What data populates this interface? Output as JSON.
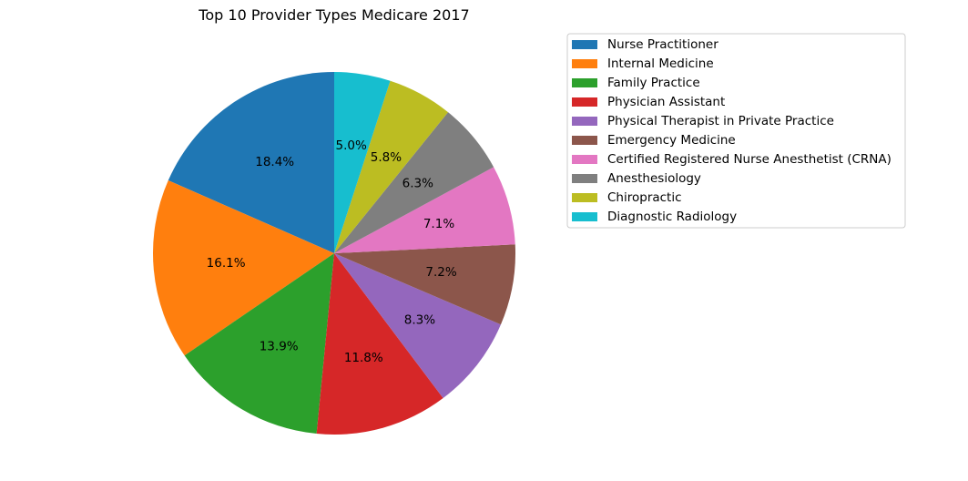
{
  "chart_data": {
    "type": "pie",
    "title": "Top 10 Provider Types Medicare 2017",
    "legend_placement": "upper-right",
    "start_angle_deg": 90,
    "direction": "counterclockwise",
    "slices": [
      {
        "label": "Nurse Practitioner",
        "value": 18.4,
        "pct_label": "18.4%",
        "color": "#1f77b4"
      },
      {
        "label": "Internal Medicine",
        "value": 16.1,
        "pct_label": "16.1%",
        "color": "#ff7f0e"
      },
      {
        "label": "Family Practice",
        "value": 13.9,
        "pct_label": "13.9%",
        "color": "#2ca02c"
      },
      {
        "label": "Physician Assistant",
        "value": 11.8,
        "pct_label": "11.8%",
        "color": "#d62728"
      },
      {
        "label": "Physical Therapist in Private Practice",
        "value": 8.3,
        "pct_label": "8.3%",
        "color": "#9467bd"
      },
      {
        "label": "Emergency Medicine",
        "value": 7.2,
        "pct_label": "7.2%",
        "color": "#8c564b"
      },
      {
        "label": "Certified Registered Nurse Anesthetist (CRNA)",
        "value": 7.1,
        "pct_label": "7.1%",
        "color": "#e377c2"
      },
      {
        "label": "Anesthesiology",
        "value": 6.3,
        "pct_label": "6.3%",
        "color": "#7f7f7f"
      },
      {
        "label": "Chiropractic",
        "value": 5.8,
        "pct_label": "5.8%",
        "color": "#bcbd22"
      },
      {
        "label": "Diagnostic Radiology",
        "value": 5.0,
        "pct_label": "5.0%",
        "color": "#17becf"
      }
    ]
  }
}
